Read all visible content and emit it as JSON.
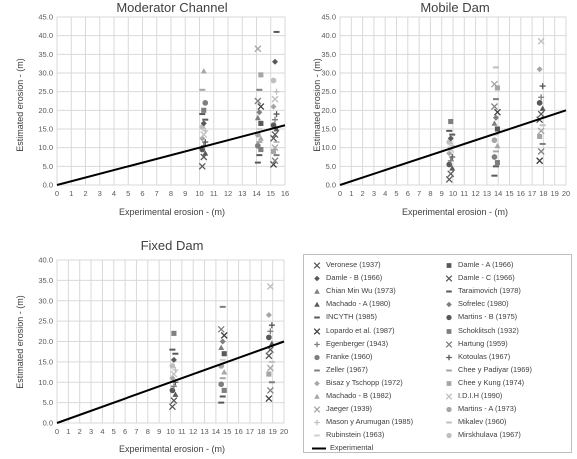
{
  "chart_data": [
    {
      "type": "scatter",
      "title": "Moderator Channel",
      "xlabel": "Experimental erosion - (m)",
      "ylabel": "Estimated erosion - (m)",
      "xlim": [
        0,
        16
      ],
      "ylim": [
        0,
        45
      ],
      "xticks": [
        "0",
        "1",
        "2",
        "3",
        "4",
        "5",
        "6",
        "7",
        "8",
        "9",
        "10",
        "11",
        "12",
        "13",
        "14",
        "15",
        "16"
      ],
      "yticks": [
        "0.0",
        "5.0",
        "10.0",
        "15.0",
        "20.0",
        "25.0",
        "30.0",
        "35.0",
        "40.0",
        "45.0"
      ],
      "x_groups": [
        10.3,
        14.2,
        15.3
      ],
      "group_values": [
        [
          5.0,
          7.5,
          8.5,
          9.5,
          10.5,
          11.5,
          12.5,
          13.5,
          14.5,
          15.5,
          16.5,
          17.5,
          19.0,
          20.0,
          22.0,
          25.5,
          30.5
        ],
        [
          6.0,
          8.0,
          9.5,
          10.5,
          11.5,
          12.5,
          13.5,
          15.0,
          16.5,
          18.0,
          19.5,
          21.0,
          22.5,
          25.5,
          29.5,
          36.5
        ],
        [
          5.5,
          6.5,
          8.0,
          9.0,
          10.0,
          11.5,
          12.5,
          13.5,
          15.0,
          16.0,
          17.5,
          19.0,
          21.0,
          23.0,
          25.0,
          28.0,
          33.0,
          41.0
        ]
      ],
      "line": {
        "name": "Experimental",
        "x": [
          0,
          16
        ],
        "y": [
          0,
          16
        ]
      }
    },
    {
      "type": "scatter",
      "title": "Mobile Dam",
      "xlabel": "Experimental erosion - (m)",
      "ylabel": "Estimated erosion - (m)",
      "xlim": [
        0,
        20
      ],
      "ylim": [
        0,
        45
      ],
      "xticks": [
        "0",
        "1",
        "2",
        "3",
        "4",
        "5",
        "6",
        "7",
        "8",
        "9",
        "10",
        "11",
        "12",
        "13",
        "14",
        "15",
        "16",
        "17",
        "18",
        "19",
        "20"
      ],
      "yticks": [
        "0.0",
        "5.0",
        "10.0",
        "15.0",
        "20.0",
        "25.0",
        "30.0",
        "35.0",
        "40.0",
        "45.0"
      ],
      "x_groups": [
        9.8,
        13.8,
        17.8
      ],
      "group_values": [
        [
          1.5,
          3.0,
          4.5,
          5.5,
          6.5,
          7.5,
          8.5,
          9.5,
          10.5,
          11.5,
          12.5,
          13.5,
          14.5,
          17.0
        ],
        [
          2.5,
          5.0,
          6.0,
          7.5,
          9.0,
          10.5,
          12.0,
          13.5,
          15.0,
          16.5,
          18.0,
          19.5,
          21.0,
          23.0,
          26.0,
          27.0,
          31.5
        ],
        [
          6.5,
          9.0,
          11.0,
          13.0,
          14.5,
          16.0,
          17.5,
          19.0,
          20.5,
          22.0,
          23.5,
          26.5,
          31.0,
          38.5
        ]
      ],
      "line": {
        "name": "Experimental",
        "x": [
          0,
          20
        ],
        "y": [
          0,
          20
        ]
      }
    },
    {
      "type": "scatter",
      "title": "Fixed Dam",
      "xlabel": "Experimental erosion - (m)",
      "ylabel": "Estimated erosion - (m)",
      "xlim": [
        0,
        20
      ],
      "ylim": [
        0,
        40
      ],
      "xticks": [
        "0",
        "1",
        "2",
        "3",
        "4",
        "5",
        "6",
        "7",
        "8",
        "9",
        "10",
        "11",
        "12",
        "13",
        "14",
        "15",
        "16",
        "17",
        "18",
        "19",
        "20"
      ],
      "yticks": [
        "0.0",
        "5.0",
        "10.0",
        "15.0",
        "20.0",
        "25.0",
        "30.0",
        "35.0",
        "40.0"
      ],
      "x_groups": [
        10.3,
        14.6,
        18.8
      ],
      "group_values": [
        [
          4.0,
          5.5,
          7.0,
          8.0,
          9.0,
          10.0,
          11.0,
          12.0,
          13.0,
          14.0,
          15.5,
          17.0,
          18.0,
          22.0
        ],
        [
          5.0,
          6.5,
          8.0,
          9.5,
          11.0,
          12.5,
          14.0,
          15.5,
          17.0,
          18.5,
          20.0,
          21.5,
          23.0,
          28.5
        ],
        [
          6.0,
          8.0,
          10.0,
          12.0,
          13.5,
          15.0,
          16.5,
          18.0,
          19.5,
          21.0,
          22.5,
          24.0,
          26.5,
          33.5
        ]
      ],
      "line": {
        "name": "Experimental",
        "x": [
          0,
          20
        ],
        "y": [
          0,
          20
        ]
      }
    }
  ],
  "legend": {
    "entries": [
      {
        "label": "Veronese (1937)",
        "marker": "x",
        "color": "#595959"
      },
      {
        "label": "Damle - A (1966)",
        "marker": "square",
        "color": "#595959"
      },
      {
        "label": "Damle - B (1966)",
        "marker": "diamond",
        "color": "#595959"
      },
      {
        "label": "Damle - C (1966)",
        "marker": "x",
        "color": "#595959"
      },
      {
        "label": "Chian Min Wu (1973)",
        "marker": "triangle",
        "color": "#7f7f7f"
      },
      {
        "label": "Taraimovich (1978)",
        "marker": "dash",
        "color": "#595959"
      },
      {
        "label": "Machado - A (1980)",
        "marker": "triangle",
        "color": "#595959"
      },
      {
        "label": "Sofrelec (1980)",
        "marker": "diamond",
        "color": "#7f7f7f"
      },
      {
        "label": "INCYTH (1985)",
        "marker": "dash",
        "color": "#595959"
      },
      {
        "label": "Martins - B (1975)",
        "marker": "circle",
        "color": "#595959"
      },
      {
        "label": "Lopardo et al. (1987)",
        "marker": "x",
        "color": "#404040"
      },
      {
        "label": "Schoklitsch (1932)",
        "marker": "square",
        "color": "#7f7f7f"
      },
      {
        "label": "Egenberger (1943)",
        "marker": "plus",
        "color": "#7f7f7f"
      },
      {
        "label": "Hartung (1959)",
        "marker": "x",
        "color": "#7f7f7f"
      },
      {
        "label": "Franke (1960)",
        "marker": "circle",
        "color": "#7f7f7f"
      },
      {
        "label": "Kotoulas (1967)",
        "marker": "plus",
        "color": "#595959"
      },
      {
        "label": "Zeller (1967)",
        "marker": "dash",
        "color": "#7f7f7f"
      },
      {
        "label": "Chee y Padiyar (1969)",
        "marker": "dash",
        "color": "#a6a6a6"
      },
      {
        "label": "Bisaz y Tschopp (1972)",
        "marker": "diamond",
        "color": "#a6a6a6"
      },
      {
        "label": "Chee y Kung (1974)",
        "marker": "square",
        "color": "#a6a6a6"
      },
      {
        "label": "Machado - B (1982)",
        "marker": "triangle",
        "color": "#a6a6a6"
      },
      {
        "label": "I.D.I.H (1990)",
        "marker": "x",
        "color": "#bfbfbf"
      },
      {
        "label": "Jaeger (1939)",
        "marker": "x",
        "color": "#a6a6a6"
      },
      {
        "label": "Martins - A (1973)",
        "marker": "circle",
        "color": "#a6a6a6"
      },
      {
        "label": "Mason y Arumugan (1985)",
        "marker": "plus",
        "color": "#bfbfbf"
      },
      {
        "label": "Mikalev (1960)",
        "marker": "dash",
        "color": "#bfbfbf"
      },
      {
        "label": "Rubinstein (1963)",
        "marker": "dash",
        "color": "#cfcfcf"
      },
      {
        "label": "Mirskhulava (1967)",
        "marker": "circle",
        "color": "#bfbfbf"
      },
      {
        "label": "Experimental",
        "marker": "line",
        "color": "#000000"
      }
    ]
  }
}
